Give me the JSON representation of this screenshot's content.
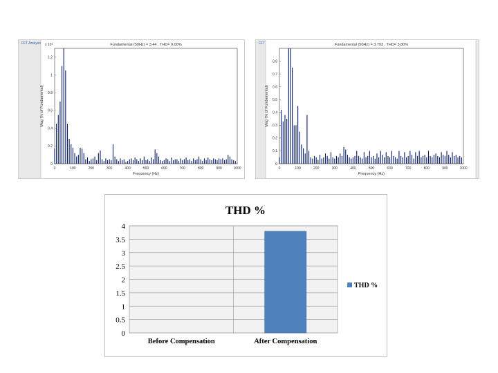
{
  "fft_left": {
    "window_title": "FFT Analysis",
    "header": "Fundamental (50Hz) = 3.44 , THD= 0.00%",
    "exponent": "x 10³",
    "ylabel": "Mag (% of Fundamental)",
    "xlabel": "Frequency (Hz)"
  },
  "fft_right": {
    "window_title": "FFT Analysis",
    "header": "Fundamental (50Hz) = 3.793 , THD= 3.80%",
    "ylabel": "Mag (% of Fundamental)",
    "xlabel": "Frequency (Hz)"
  },
  "thd_legend_label": "THD %",
  "chart_data": [
    {
      "type": "bar",
      "title": "Fundamental (50Hz) = 3.44 , THD= 0.00%",
      "xlabel": "Frequency (Hz)",
      "ylabel": "Mag (% of Fundamental)",
      "xlim": [
        0,
        1000
      ],
      "ylim": [
        0,
        1.3
      ],
      "xticks": [
        "0",
        "100",
        "200",
        "300",
        "400",
        "500",
        "600",
        "700",
        "800",
        "900",
        "1000"
      ],
      "yticks": [
        "0",
        "0.2",
        "0.4",
        "0.6",
        "0.8",
        "1",
        "1.2"
      ],
      "x": [
        0,
        10,
        20,
        30,
        40,
        50,
        60,
        70,
        80,
        90,
        100,
        110,
        120,
        130,
        140,
        150,
        160,
        170,
        180,
        190,
        200,
        210,
        220,
        230,
        240,
        250,
        260,
        270,
        280,
        290,
        300,
        310,
        320,
        330,
        340,
        350,
        360,
        370,
        380,
        390,
        400,
        410,
        420,
        430,
        440,
        450,
        460,
        470,
        480,
        490,
        500,
        510,
        520,
        530,
        540,
        550,
        560,
        570,
        580,
        590,
        600,
        610,
        620,
        630,
        640,
        650,
        660,
        670,
        680,
        690,
        700,
        710,
        720,
        730,
        740,
        750,
        760,
        770,
        780,
        790,
        800,
        810,
        820,
        830,
        840,
        850,
        860,
        870,
        880,
        890,
        900,
        910,
        920,
        930,
        940,
        950,
        960,
        970,
        980,
        990
      ],
      "values": [
        0.17,
        0.45,
        0.55,
        0.7,
        1.1,
        1.3,
        1.05,
        0.45,
        0.28,
        0.22,
        0.18,
        0.12,
        0.08,
        0.1,
        0.18,
        0.17,
        0.12,
        0.05,
        0.07,
        0.03,
        0.05,
        0.06,
        0.08,
        0.04,
        0.12,
        0.15,
        0.05,
        0.03,
        0.06,
        0.04,
        0.05,
        0.04,
        0.22,
        0.08,
        0.05,
        0.03,
        0.06,
        0.04,
        0.05,
        0.02,
        0.03,
        0.05,
        0.06,
        0.04,
        0.07,
        0.05,
        0.03,
        0.06,
        0.04,
        0.08,
        0.04,
        0.05,
        0.03,
        0.07,
        0.05,
        0.16,
        0.12,
        0.08,
        0.04,
        0.03,
        0.04,
        0.06,
        0.05,
        0.03,
        0.07,
        0.04,
        0.05,
        0.05,
        0.03,
        0.06,
        0.04,
        0.05,
        0.07,
        0.04,
        0.05,
        0.03,
        0.06,
        0.04,
        0.05,
        0.08,
        0.05,
        0.03,
        0.06,
        0.04,
        0.07,
        0.05,
        0.04,
        0.06,
        0.05,
        0.04,
        0.06,
        0.05,
        0.06,
        0.04,
        0.05,
        0.1,
        0.08,
        0.05,
        0.04,
        0.03
      ]
    },
    {
      "type": "bar",
      "title": "Fundamental (50Hz) = 3.793 , THD= 3.80%",
      "xlabel": "Frequency (Hz)",
      "ylabel": "Mag (% of Fundamental)",
      "xlim": [
        0,
        1000
      ],
      "ylim": [
        0,
        0.9
      ],
      "xticks": [
        "0",
        "100",
        "200",
        "300",
        "400",
        "500",
        "600",
        "700",
        "800",
        "900",
        "1000"
      ],
      "yticks": [
        "0",
        "0.1",
        "0.2",
        "0.3",
        "0.4",
        "0.5",
        "0.6",
        "0.7",
        "0.8"
      ],
      "x": [
        0,
        10,
        20,
        30,
        40,
        50,
        60,
        70,
        80,
        90,
        100,
        110,
        120,
        130,
        140,
        150,
        160,
        170,
        180,
        190,
        200,
        210,
        220,
        230,
        240,
        250,
        260,
        270,
        280,
        290,
        300,
        310,
        320,
        330,
        340,
        350,
        360,
        370,
        380,
        390,
        400,
        410,
        420,
        430,
        440,
        450,
        460,
        470,
        480,
        490,
        500,
        510,
        520,
        530,
        540,
        550,
        560,
        570,
        580,
        590,
        600,
        610,
        620,
        630,
        640,
        650,
        660,
        670,
        680,
        690,
        700,
        710,
        720,
        730,
        740,
        750,
        760,
        770,
        780,
        790,
        800,
        810,
        820,
        830,
        840,
        850,
        860,
        870,
        880,
        890,
        900,
        910,
        920,
        930,
        940,
        950,
        960,
        970,
        980,
        990
      ],
      "values": [
        0.05,
        0.42,
        0.33,
        0.38,
        0.35,
        0.9,
        0.9,
        0.75,
        0.3,
        0.3,
        0.45,
        0.25,
        0.15,
        0.12,
        0.08,
        0.38,
        0.1,
        0.05,
        0.04,
        0.06,
        0.05,
        0.03,
        0.07,
        0.04,
        0.05,
        0.08,
        0.06,
        0.04,
        0.09,
        0.05,
        0.04,
        0.06,
        0.05,
        0.08,
        0.06,
        0.13,
        0.11,
        0.07,
        0.05,
        0.04,
        0.05,
        0.06,
        0.1,
        0.06,
        0.05,
        0.04,
        0.09,
        0.05,
        0.06,
        0.1,
        0.05,
        0.06,
        0.04,
        0.08,
        0.05,
        0.1,
        0.07,
        0.05,
        0.09,
        0.06,
        0.05,
        0.1,
        0.06,
        0.05,
        0.04,
        0.1,
        0.06,
        0.05,
        0.09,
        0.05,
        0.06,
        0.1,
        0.07,
        0.04,
        0.09,
        0.06,
        0.1,
        0.05,
        0.06,
        0.07,
        0.05,
        0.1,
        0.06,
        0.05,
        0.07,
        0.08,
        0.06,
        0.05,
        0.09,
        0.07,
        0.06,
        0.1,
        0.07,
        0.05,
        0.09,
        0.06,
        0.07,
        0.05,
        0.06,
        0.05
      ]
    },
    {
      "type": "bar",
      "title": "THD %",
      "categories": [
        "Before Compensation",
        "After Compensation"
      ],
      "values": [
        0,
        3.8
      ],
      "ylim": [
        0,
        4
      ],
      "yticks": [
        "0",
        "0.5",
        "1",
        "1.5",
        "2",
        "2.5",
        "3",
        "3.5",
        "4"
      ],
      "series_name": "THD %",
      "color": "#4f81bd",
      "legend": "right"
    }
  ]
}
